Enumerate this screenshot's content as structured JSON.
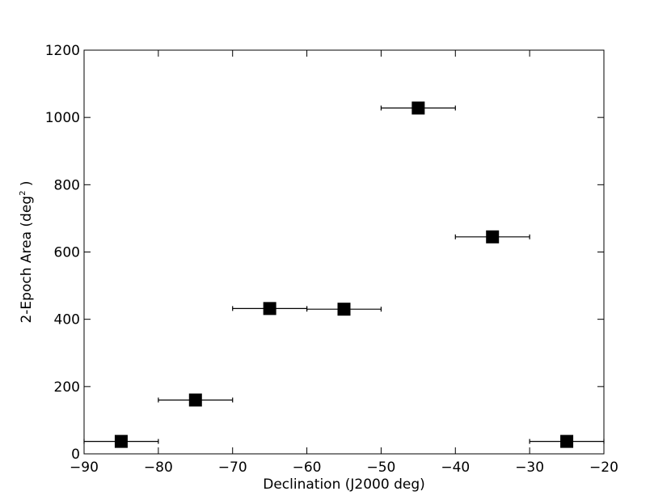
{
  "chart_data": {
    "type": "scatter",
    "title": "",
    "xlabel": "Declination (J2000 deg)",
    "ylabel_main": "2-Epoch Area (deg",
    "ylabel_sup": "2",
    "ylabel_end": " )",
    "xlim": [
      -90,
      -20
    ],
    "ylim": [
      0,
      1200
    ],
    "xticks": [
      -90,
      -80,
      -70,
      -60,
      -50,
      -40,
      -30,
      -20
    ],
    "yticks": [
      0,
      200,
      400,
      600,
      800,
      1000,
      1200
    ],
    "xtick_labels": [
      "−90",
      "−80",
      "−70",
      "−60",
      "−50",
      "−40",
      "−30",
      "−20"
    ],
    "ytick_labels": [
      "0",
      "200",
      "400",
      "600",
      "800",
      "1000",
      "1200"
    ],
    "grid": false,
    "marker": "square",
    "marker_color": "#000000",
    "points": [
      {
        "x": -85,
        "y": 37,
        "xerr": 5
      },
      {
        "x": -75,
        "y": 160,
        "xerr": 5
      },
      {
        "x": -65,
        "y": 432,
        "xerr": 5
      },
      {
        "x": -55,
        "y": 430,
        "xerr": 5
      },
      {
        "x": -45,
        "y": 1028,
        "xerr": 5
      },
      {
        "x": -35,
        "y": 645,
        "xerr": 5
      },
      {
        "x": -25,
        "y": 37,
        "xerr": 5
      }
    ]
  }
}
